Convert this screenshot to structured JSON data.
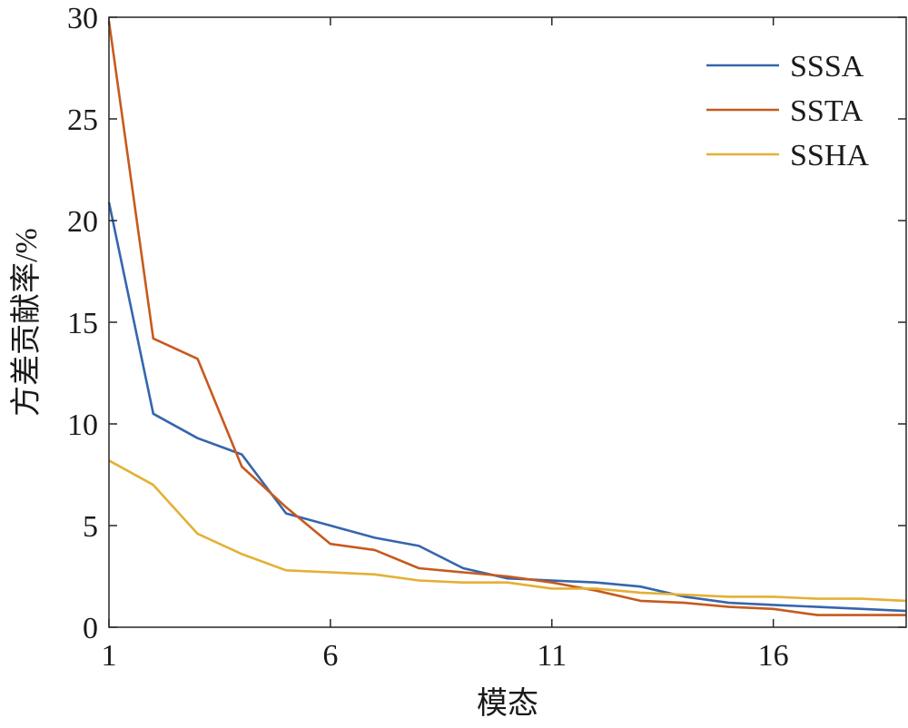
{
  "chart_data": {
    "type": "line",
    "xlabel": "模态",
    "ylabel": "方差贡献率/%",
    "xlim": [
      1,
      19
    ],
    "ylim": [
      0,
      30
    ],
    "xticks": [
      1,
      6,
      11,
      16
    ],
    "yticks": [
      0,
      5,
      10,
      15,
      20,
      25,
      30
    ],
    "grid": false,
    "legend_position": "top-right",
    "x": [
      1,
      2,
      3,
      4,
      5,
      6,
      7,
      8,
      9,
      10,
      11,
      12,
      13,
      14,
      15,
      16,
      17,
      18,
      19
    ],
    "series": [
      {
        "name": "SSSA",
        "color": "#3466ad",
        "values": [
          20.9,
          10.5,
          9.3,
          8.5,
          5.6,
          5.0,
          4.4,
          4.0,
          2.9,
          2.4,
          2.3,
          2.2,
          2.0,
          1.5,
          1.2,
          1.1,
          1.0,
          0.9,
          0.8
        ]
      },
      {
        "name": "SSTA",
        "color": "#c65a1e",
        "values": [
          29.8,
          14.2,
          13.2,
          7.9,
          5.9,
          4.1,
          3.8,
          2.9,
          2.7,
          2.5,
          2.2,
          1.8,
          1.3,
          1.2,
          1.0,
          0.9,
          0.6,
          0.6,
          0.6
        ]
      },
      {
        "name": "SSHA",
        "color": "#e4b035",
        "values": [
          8.2,
          7.0,
          4.6,
          3.6,
          2.8,
          2.7,
          2.6,
          2.3,
          2.2,
          2.2,
          1.9,
          1.9,
          1.7,
          1.6,
          1.5,
          1.5,
          1.4,
          1.4,
          1.3
        ]
      }
    ]
  }
}
